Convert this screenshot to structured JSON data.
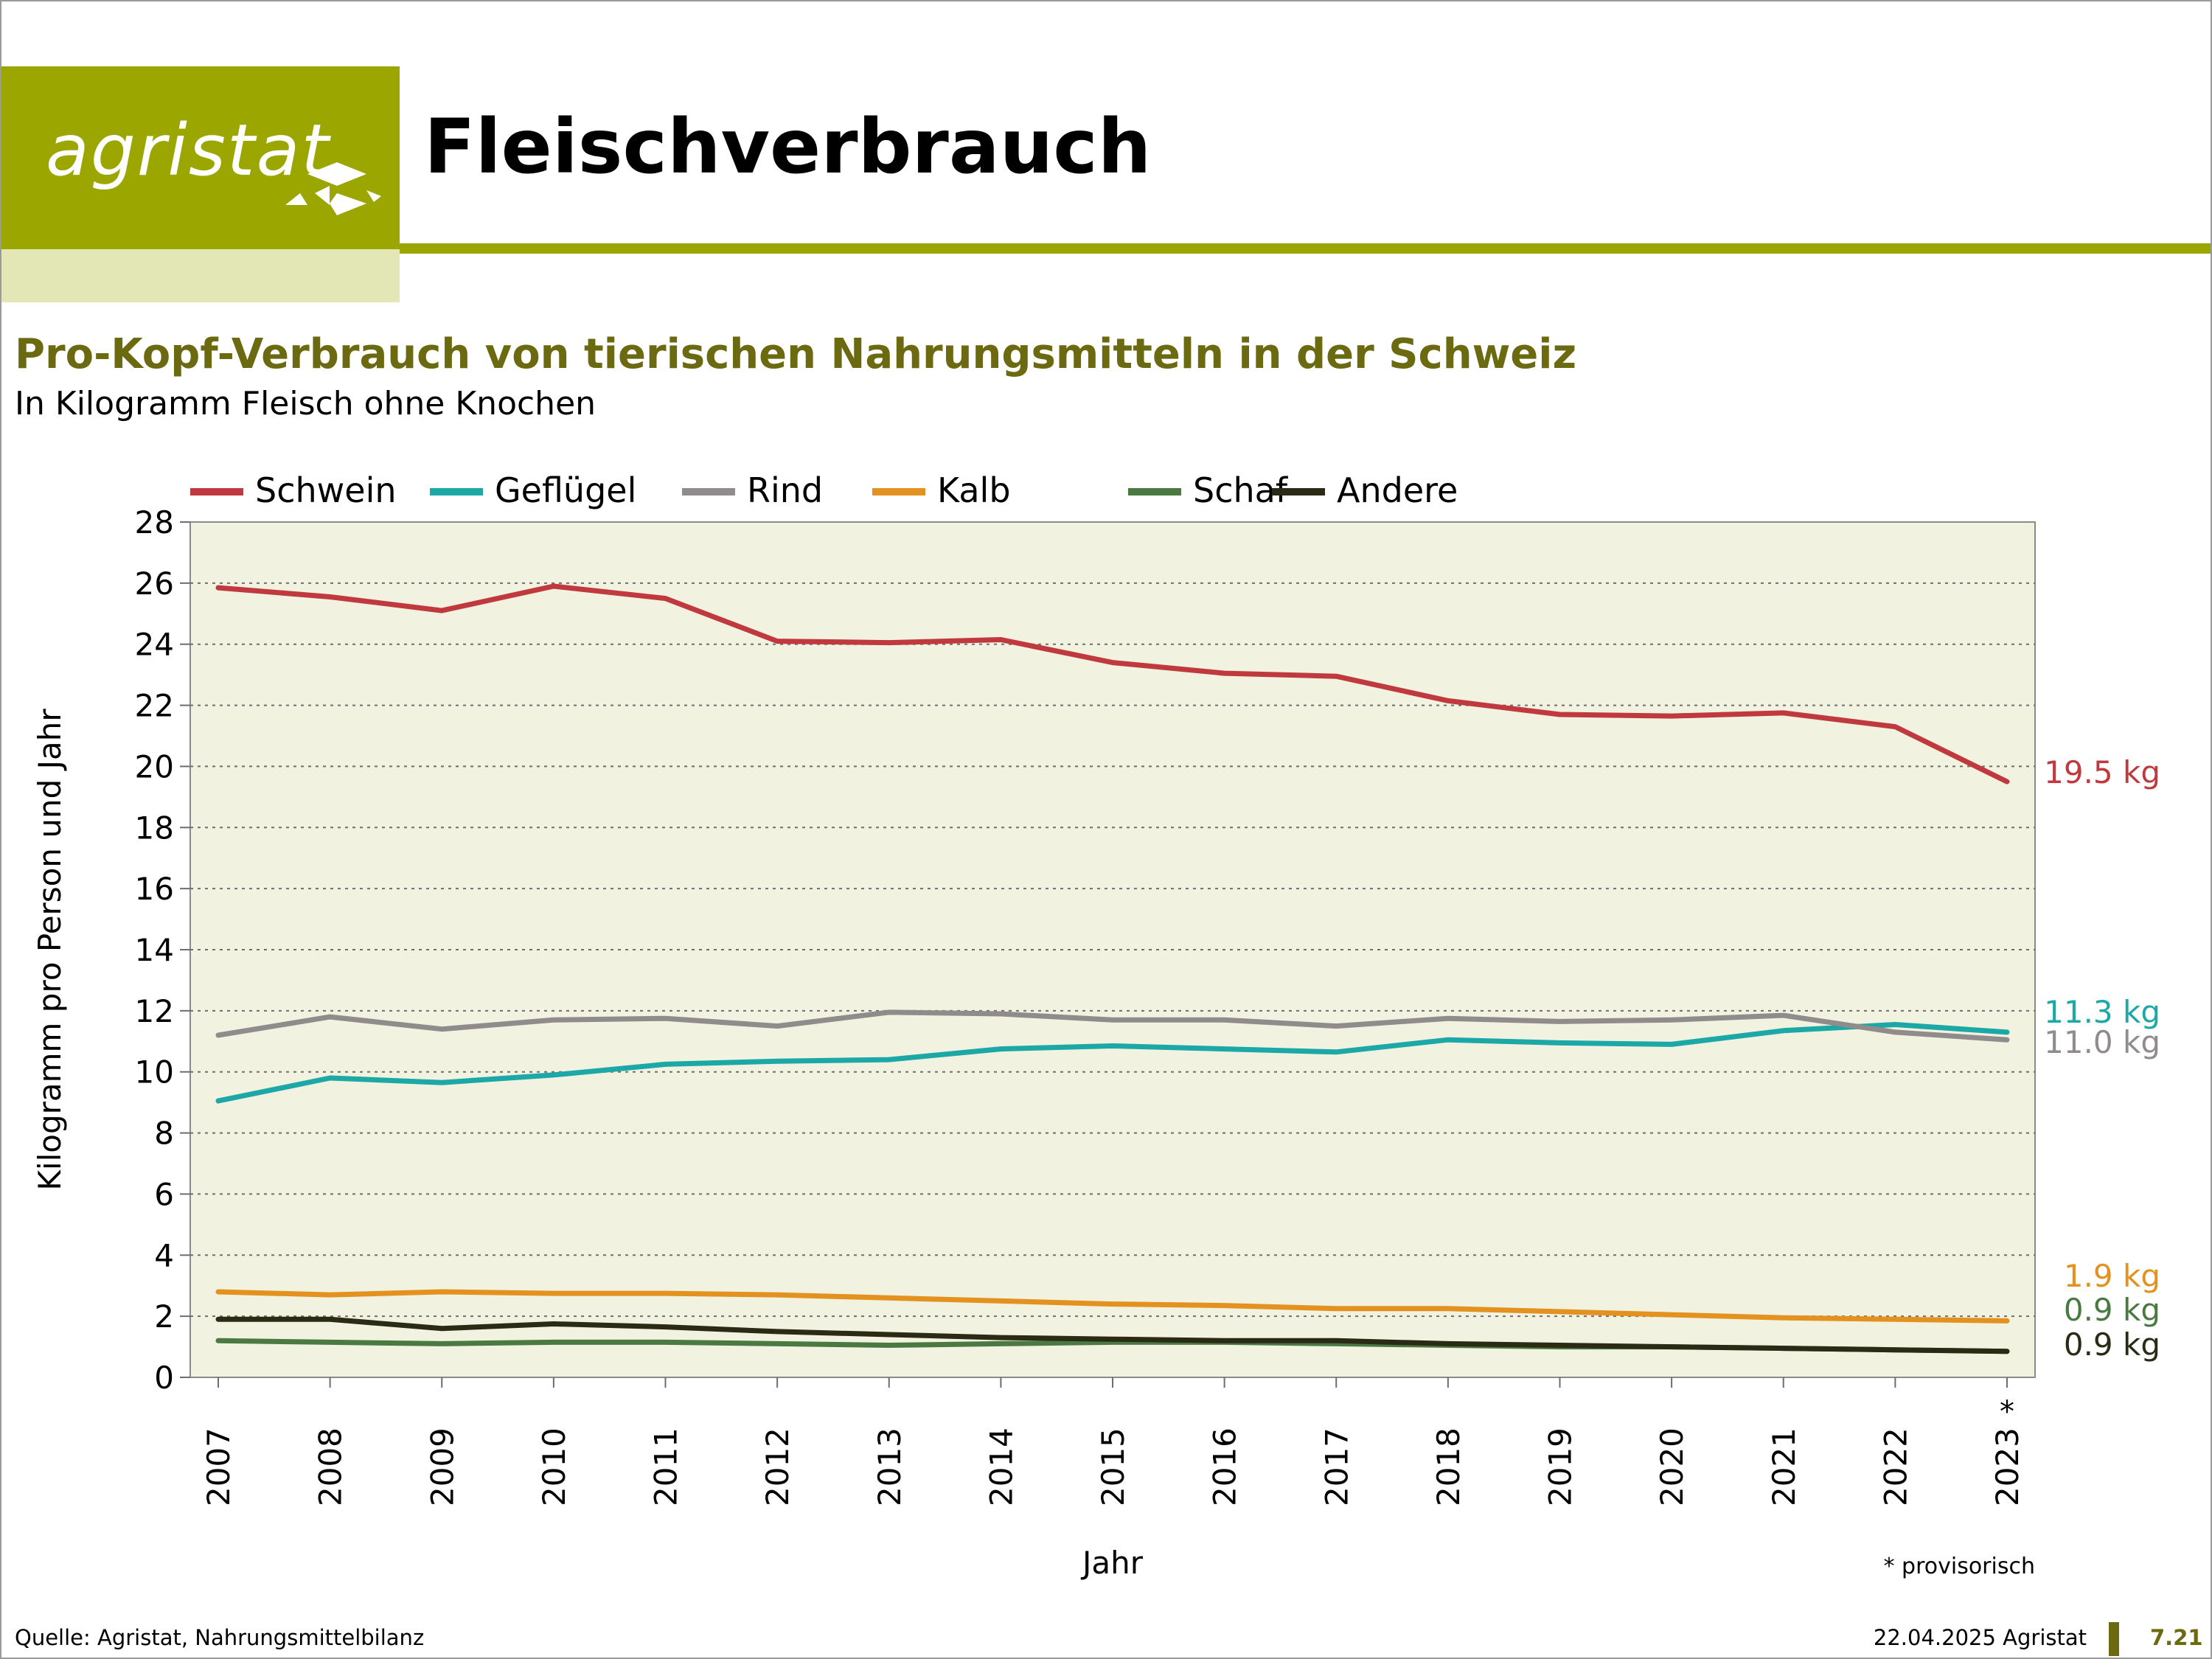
{
  "header": {
    "logo_text": "agristat",
    "title": "Fleischverbrauch"
  },
  "chart_heading": {
    "title": "Pro-Kopf-Verbrauch von tierischen Nahrungsmitteln in der Schweiz",
    "subtitle": "In Kilogramm Fleisch ohne Knochen"
  },
  "chart_data": {
    "type": "line",
    "x": [
      2007,
      2008,
      2009,
      2010,
      2011,
      2012,
      2013,
      2014,
      2015,
      2016,
      2017,
      2018,
      2019,
      2020,
      2021,
      2022,
      2023
    ],
    "x_tick_labels": [
      "2007",
      "2008",
      "2009",
      "2010",
      "2011",
      "2012",
      "2013",
      "2014",
      "2015",
      "2016",
      "2017",
      "2018",
      "2019",
      "2020",
      "2021",
      "2022",
      "2023"
    ],
    "xlabel": "Jahr",
    "ylabel": "Kilogramm pro Person und Jahr",
    "ylim": [
      0,
      28
    ],
    "y_ticks": [
      0,
      2,
      4,
      6,
      8,
      10,
      12,
      14,
      16,
      18,
      20,
      22,
      24,
      26,
      28
    ],
    "grid": "horizontal dotted",
    "legend_position": "top",
    "plot_background": "#f2f2e1",
    "last_year_marker": "*",
    "footnote": "* provisorisch",
    "series": [
      {
        "name": "Schwein",
        "color": "#c0393f",
        "end_label": "19.5 kg",
        "values": [
          25.85,
          25.55,
          25.1,
          25.9,
          25.5,
          24.1,
          24.05,
          24.15,
          23.4,
          23.05,
          22.95,
          22.15,
          21.7,
          21.65,
          21.75,
          21.3,
          19.5
        ]
      },
      {
        "name": "Geflügel",
        "color": "#1ba8a6",
        "end_label": "11.3 kg",
        "values": [
          9.05,
          9.8,
          9.65,
          9.9,
          10.25,
          10.35,
          10.4,
          10.75,
          10.85,
          10.75,
          10.65,
          11.05,
          10.95,
          10.9,
          11.35,
          11.55,
          11.3
        ]
      },
      {
        "name": "Rind",
        "color": "#908c8c",
        "end_label": "11.0 kg",
        "values": [
          11.2,
          11.8,
          11.4,
          11.7,
          11.75,
          11.5,
          11.95,
          11.9,
          11.7,
          11.7,
          11.5,
          11.75,
          11.65,
          11.7,
          11.85,
          11.3,
          11.05
        ]
      },
      {
        "name": "Kalb",
        "color": "#e3921f",
        "end_label": "1.9 kg",
        "values": [
          2.8,
          2.7,
          2.8,
          2.75,
          2.75,
          2.7,
          2.6,
          2.5,
          2.4,
          2.35,
          2.25,
          2.25,
          2.15,
          2.05,
          1.95,
          1.9,
          1.85
        ]
      },
      {
        "name": "Schaf",
        "color": "#4a7a42",
        "end_label": "0.9 kg",
        "values": [
          1.2,
          1.15,
          1.1,
          1.15,
          1.15,
          1.1,
          1.05,
          1.1,
          1.15,
          1.15,
          1.1,
          1.05,
          1.0,
          1.0,
          0.95,
          0.9,
          0.85
        ]
      },
      {
        "name": "Andere",
        "color": "#2b2a14",
        "end_label": "0.9 kg",
        "values": [
          1.9,
          1.9,
          1.6,
          1.75,
          1.65,
          1.5,
          1.4,
          1.3,
          1.25,
          1.2,
          1.2,
          1.1,
          1.05,
          1.0,
          0.95,
          0.9,
          0.85
        ]
      }
    ]
  },
  "footer": {
    "source": "Quelle: Agristat, Nahrungsmittelbilanz",
    "date": "22.04.2025 Agristat",
    "page": "7.21"
  }
}
